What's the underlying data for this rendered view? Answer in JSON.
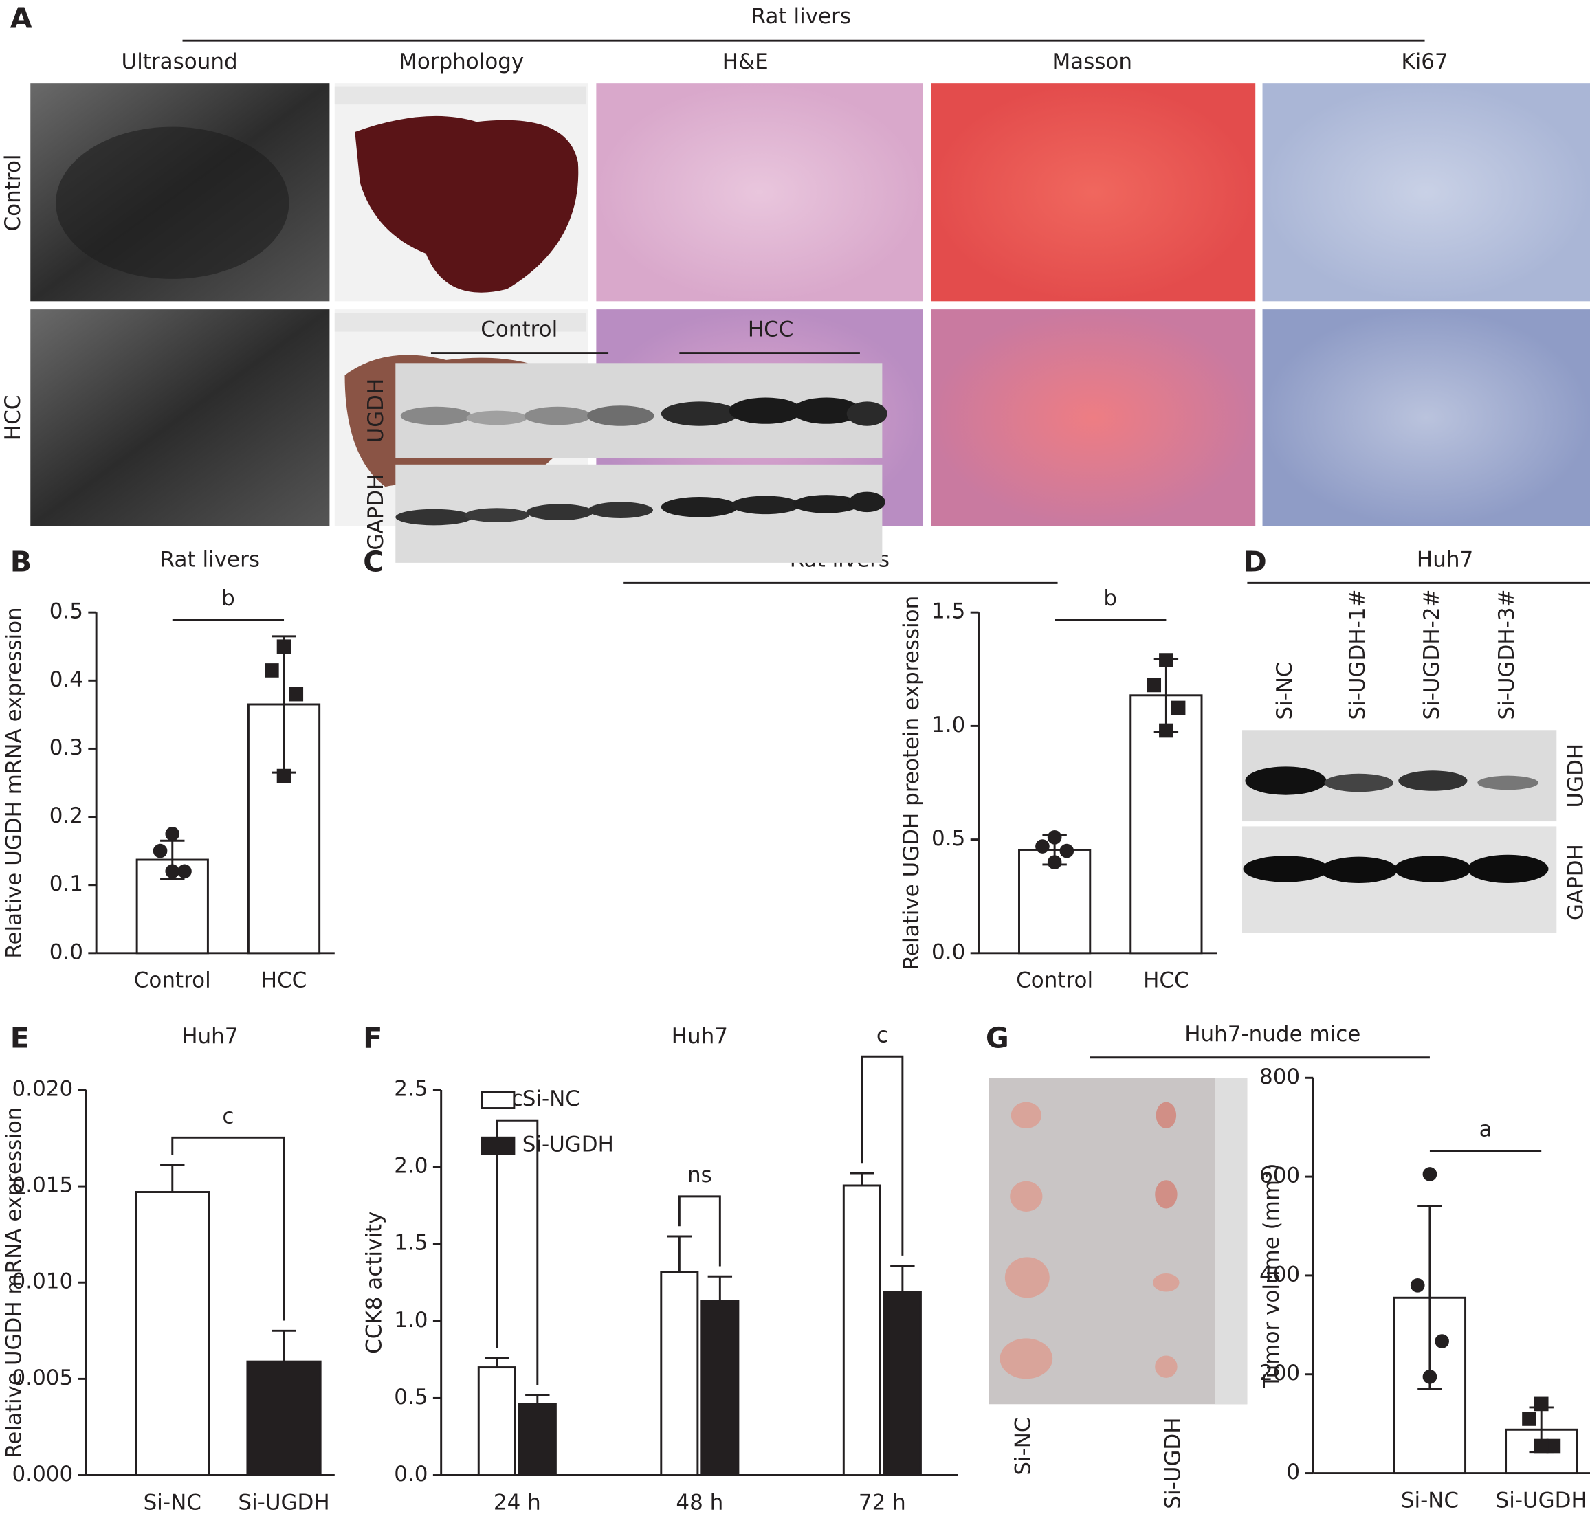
{
  "figure": {
    "panel_labels": [
      "A",
      "B",
      "C",
      "D",
      "E",
      "F",
      "G"
    ],
    "panel_a": {
      "title": "Rat livers",
      "columns": [
        "Ultrasound",
        "Morphology",
        "H&E",
        "Masson",
        "Ki67"
      ],
      "rows": [
        "Control",
        "HCC"
      ]
    },
    "panel_c_blot": {
      "title": "Rat livers",
      "groups": [
        "Control",
        "HCC"
      ],
      "proteins": [
        "UGDH",
        "GAPDH"
      ]
    },
    "panel_d": {
      "title": "Huh7",
      "lanes": [
        "Si-NC",
        "Si-UGDH-1#",
        "Si-UGDH-2#",
        "Si-UGDH-3#"
      ],
      "proteins": [
        "UGDH",
        "GAPDH"
      ]
    },
    "panel_g_photo": {
      "title": "Huh7-nude mice",
      "labels": [
        "Si-NC",
        "Si-UGDH"
      ]
    }
  },
  "chart_data": [
    {
      "type": "bar",
      "title": "Rat livers",
      "ylabel": "Relative UGDH mRNA expression",
      "categories": [
        "Control",
        "HCC"
      ],
      "values": [
        0.137,
        0.365
      ],
      "errors": [
        0.028,
        0.1
      ],
      "colors": [
        "#ffffff",
        "#ffffff"
      ],
      "markers": [
        "circle",
        "square"
      ],
      "points": [
        [
          0.175,
          0.15,
          0.12,
          0.12
        ],
        [
          0.45,
          0.415,
          0.38,
          0.26
        ]
      ],
      "significance": [
        "b"
      ],
      "ylim": [
        0,
        0.5
      ],
      "yticks": [
        {
          "value": 0,
          "label": "0.0"
        },
        0.1,
        0.2,
        0.3,
        0.4,
        0.5
      ]
    },
    {
      "type": "bar",
      "ylabel": "Relative UGDH preotein expression",
      "categories": [
        "Control",
        "HCC"
      ],
      "values": [
        0.455,
        1.135
      ],
      "errors": [
        0.065,
        0.16
      ],
      "colors": [
        "#ffffff",
        "#ffffff"
      ],
      "markers": [
        "circle",
        "square"
      ],
      "points": [
        [
          0.51,
          0.47,
          0.45,
          0.4
        ],
        [
          1.29,
          1.18,
          1.08,
          0.98
        ]
      ],
      "significance": [
        "b"
      ],
      "ylim": [
        0,
        1.5
      ],
      "yticks": [
        {
          "value": 0,
          "label": "0.0"
        },
        0.5,
        {
          "value": 1,
          "label": "1.0"
        },
        1.5
      ]
    },
    {
      "type": "bar",
      "title": "Huh7",
      "ylabel": "Relative UGDH mRNA expression",
      "categories": [
        "Si-NC",
        "Si-UGDH"
      ],
      "values": [
        0.0147,
        0.0059
      ],
      "errors": [
        0.0014,
        0.0016
      ],
      "colors": [
        "#ffffff",
        "#231f20"
      ],
      "significance": [
        "c"
      ],
      "ylim": [
        0,
        0.02
      ],
      "yticks": [
        {
          "value": 0,
          "label": "0.000"
        },
        0.005,
        {
          "value": 0.01,
          "label": "0.010"
        },
        0.015,
        {
          "value": 0.02,
          "label": "0.020"
        }
      ]
    },
    {
      "type": "grouped_bar",
      "title": "Huh7",
      "ylabel": "CCK8 activity",
      "categories": [
        "24 h",
        "48 h",
        "72 h"
      ],
      "series": [
        {
          "name": "Si-NC",
          "color": "#ffffff",
          "values": [
            0.7,
            1.32,
            1.88
          ],
          "errors": [
            0.06,
            0.23,
            0.08
          ]
        },
        {
          "name": "Si-UGDH",
          "color": "#231f20",
          "values": [
            0.46,
            1.13,
            1.19
          ],
          "errors": [
            0.06,
            0.16,
            0.17
          ]
        }
      ],
      "significance": [
        "c",
        "ns",
        "c"
      ],
      "ylim": [
        0,
        2.5
      ],
      "yticks": [
        {
          "value": 0,
          "label": "0.0"
        },
        0.5,
        {
          "value": 1,
          "label": "1.0"
        },
        1.5,
        {
          "value": 2,
          "label": "2.0"
        },
        2.5
      ]
    },
    {
      "type": "bar",
      "ylabel": "Tumor volume (mm³)",
      "categories": [
        "Si-NC",
        "Si-UGDH"
      ],
      "values": [
        355,
        88
      ],
      "errors": [
        185,
        45
      ],
      "colors": [
        "#ffffff",
        "#ffffff"
      ],
      "markers": [
        "circle",
        "square"
      ],
      "points": [
        [
          605,
          380,
          267,
          195
        ],
        [
          140,
          110,
          55,
          55
        ]
      ],
      "significance": [
        "a"
      ],
      "ylim": [
        0,
        800
      ],
      "yticks": [
        0,
        200,
        400,
        600,
        800
      ]
    }
  ]
}
